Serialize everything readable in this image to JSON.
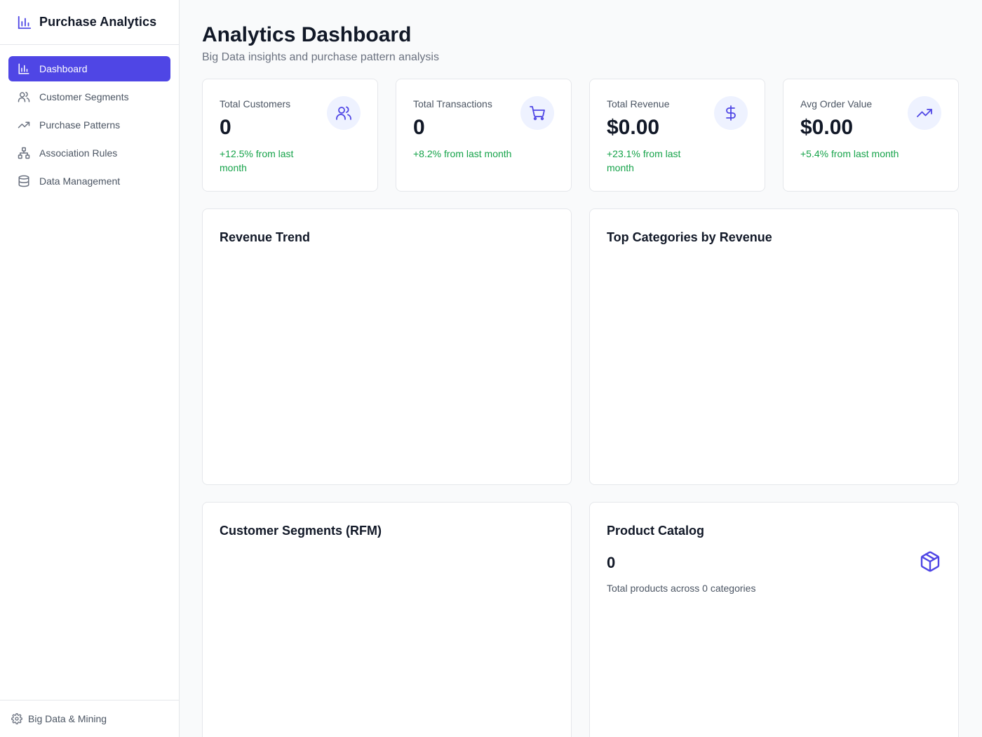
{
  "brand": {
    "title": "Purchase Analytics",
    "icon": "bar-chart-icon"
  },
  "sidebar": {
    "items": [
      {
        "label": "Dashboard",
        "icon": "bar-chart-icon",
        "active": true
      },
      {
        "label": "Customer Segments",
        "icon": "users-icon",
        "active": false
      },
      {
        "label": "Purchase Patterns",
        "icon": "trending-up-icon",
        "active": false
      },
      {
        "label": "Association Rules",
        "icon": "network-icon",
        "active": false
      },
      {
        "label": "Data Management",
        "icon": "database-icon",
        "active": false
      }
    ],
    "footer": {
      "label": "Big Data & Mining",
      "icon": "gear-icon"
    }
  },
  "header": {
    "title": "Analytics Dashboard",
    "subtitle": "Big Data insights and purchase pattern analysis"
  },
  "stats": [
    {
      "label": "Total Customers",
      "value": "0",
      "change": "+12.5% from last month",
      "icon": "users-icon"
    },
    {
      "label": "Total Transactions",
      "value": "0",
      "change": "+8.2% from last month",
      "icon": "cart-icon"
    },
    {
      "label": "Total Revenue",
      "value": "$0.00",
      "change": "+23.1% from last month",
      "icon": "dollar-icon"
    },
    {
      "label": "Avg Order Value",
      "value": "$0.00",
      "change": "+5.4% from last month",
      "icon": "trending-up-icon"
    }
  ],
  "panels": {
    "revenue_trend": {
      "title": "Revenue Trend"
    },
    "top_categories": {
      "title": "Top Categories by Revenue"
    },
    "segments": {
      "title": "Customer Segments (RFM)"
    },
    "catalog": {
      "title": "Product Catalog",
      "count": "0",
      "description": "Total products across 0 categories",
      "icon": "box-icon"
    }
  },
  "colors": {
    "accent": "#4f46e5",
    "accent_light": "#eef2ff",
    "positive": "#16a34a",
    "text_primary": "#111827",
    "text_secondary": "#4b5563"
  }
}
